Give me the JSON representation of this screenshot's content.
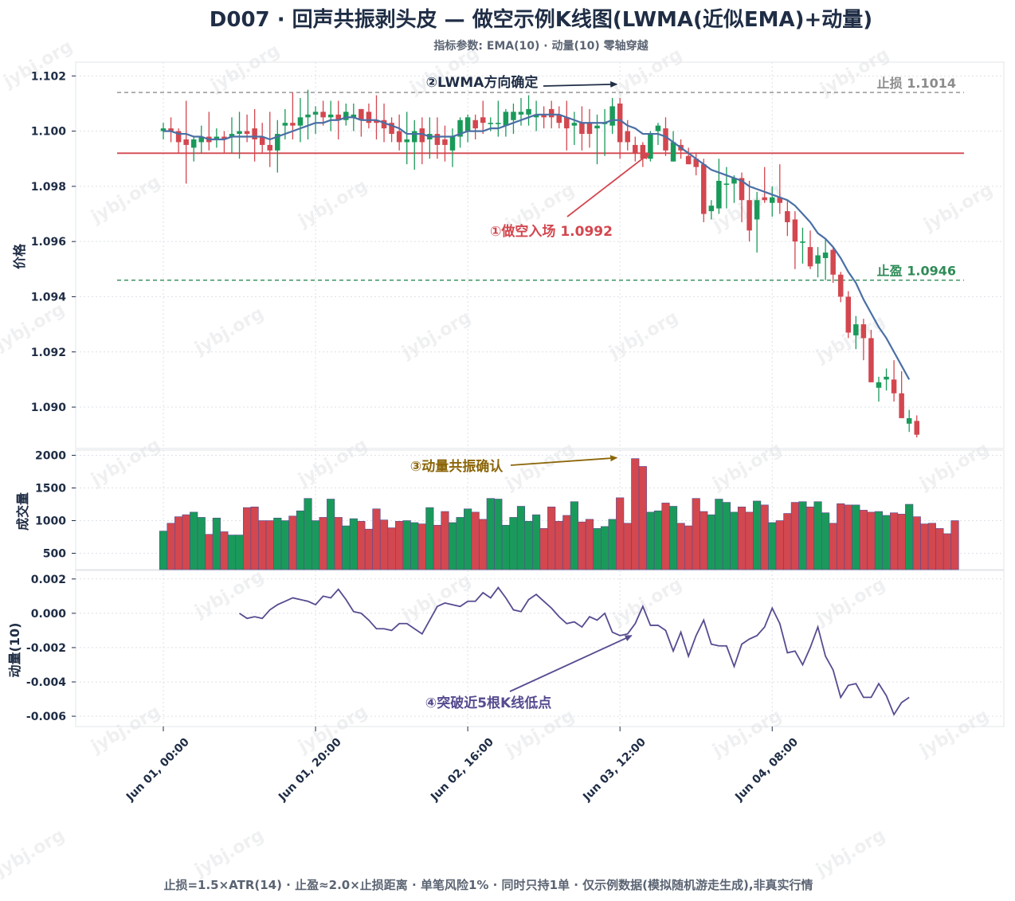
{
  "title": "D007 · 回声共振剥头皮 — 做空示例K线图(LWMA(近似EMA)+动量)",
  "subtitle": "指标参数: EMA(10) · 动量(10) 零轴穿越",
  "footer": "止损=1.5×ATR(14) · 止盈≈2.0×止损距离 · 单笔风险1% · 同时只持1单 · 仅示例数据(模拟随机游走生成),非真实行情",
  "watermark": "jybj.org",
  "colors": {
    "up": "#1a9a5a",
    "down": "#d3474f",
    "lwma": "#4a6fa5",
    "momentum": "#574b90",
    "stop": "#8c8c8c",
    "target": "#2e8b57",
    "entry": "#d3474f",
    "annotation_brown": "#8b6508",
    "annotation_dark": "#1f2d45"
  },
  "chart_data": [
    {
      "type": "candlestick",
      "panel": "price",
      "ylabel": "价格",
      "ylim": [
        1.0885,
        1.1025
      ],
      "yticks": [
        "1.102",
        "1.100",
        "1.098",
        "1.096",
        "1.094",
        "1.092",
        "1.090"
      ],
      "grid": true,
      "x_tick_labels": [
        "Jun 01, 00:00",
        "Jun 01, 20:00",
        "Jun 02, 16:00",
        "Jun 03, 12:00",
        "Jun 04, 08:00"
      ],
      "x_tick_bar_index": [
        0,
        20,
        40,
        60,
        80
      ],
      "bar_interval": "1h",
      "candles": [
        {
          "o": 1.1,
          "h": 1.1003,
          "l": 1.0997,
          "c": 1.1001
        },
        {
          "o": 1.1001,
          "h": 1.1005,
          "l": 1.0996,
          "c": 1.1
        },
        {
          "o": 1.1,
          "h": 1.1001,
          "l": 1.0992,
          "c": 1.0996
        },
        {
          "o": 1.0997,
          "h": 1.1011,
          "l": 1.0981,
          "c": 1.0995
        },
        {
          "o": 1.0994,
          "h": 1.0998,
          "l": 1.0989,
          "c": 1.0997
        },
        {
          "o": 1.0996,
          "h": 1.1002,
          "l": 1.0992,
          "c": 1.0998
        },
        {
          "o": 1.0998,
          "h": 1.1007,
          "l": 1.0993,
          "c": 1.0996
        },
        {
          "o": 1.0997,
          "h": 1.1001,
          "l": 1.0994,
          "c": 1.0998
        },
        {
          "o": 1.0998,
          "h": 1.1,
          "l": 1.0992,
          "c": 1.0997
        },
        {
          "o": 1.0998,
          "h": 1.1005,
          "l": 1.0992,
          "c": 1.0999
        },
        {
          "o": 1.0999,
          "h": 1.1007,
          "l": 1.099,
          "c": 1.1
        },
        {
          "o": 1.1,
          "h": 1.1006,
          "l": 1.0996,
          "c": 1.0999
        },
        {
          "o": 1.1001,
          "h": 1.1008,
          "l": 1.0989,
          "c": 1.0997
        },
        {
          "o": 1.0998,
          "h": 1.1003,
          "l": 1.0992,
          "c": 1.0995
        },
        {
          "o": 1.0995,
          "h": 1.1007,
          "l": 1.0987,
          "c": 1.0993
        },
        {
          "o": 1.0993,
          "h": 1.1004,
          "l": 1.0985,
          "c": 1.0999
        },
        {
          "o": 1.1002,
          "h": 1.1008,
          "l": 1.0997,
          "c": 1.1003
        },
        {
          "o": 1.1003,
          "h": 1.1014,
          "l": 1.0997,
          "c": 1.1002
        },
        {
          "o": 1.1002,
          "h": 1.1012,
          "l": 1.0996,
          "c": 1.1005
        },
        {
          "o": 1.1005,
          "h": 1.1015,
          "l": 1.0997,
          "c": 1.1006
        },
        {
          "o": 1.1006,
          "h": 1.1009,
          "l": 1.0999,
          "c": 1.1007
        },
        {
          "o": 1.1007,
          "h": 1.1011,
          "l": 1.1002,
          "c": 1.1005
        },
        {
          "o": 1.1005,
          "h": 1.1011,
          "l": 1.1,
          "c": 1.1006
        },
        {
          "o": 1.1006,
          "h": 1.1011,
          "l": 1.0997,
          "c": 1.1004
        },
        {
          "o": 1.1004,
          "h": 1.101,
          "l": 1.1002,
          "c": 1.1007
        },
        {
          "o": 1.1005,
          "h": 1.101,
          "l": 1.1,
          "c": 1.1006
        },
        {
          "o": 1.1008,
          "h": 1.1008,
          "l": 1.0998,
          "c": 1.1004
        },
        {
          "o": 1.1007,
          "h": 1.101,
          "l": 1.1001,
          "c": 1.1003
        },
        {
          "o": 1.1004,
          "h": 1.1013,
          "l": 1.0997,
          "c": 1.1003
        },
        {
          "o": 1.1004,
          "h": 1.101,
          "l": 1.0996,
          "c": 1.1001
        },
        {
          "o": 1.1003,
          "h": 1.1005,
          "l": 1.0996,
          "c": 1.0999
        },
        {
          "o": 1.1,
          "h": 1.1006,
          "l": 1.0993,
          "c": 1.0996
        },
        {
          "o": 1.0996,
          "h": 1.1007,
          "l": 1.0988,
          "c": 1.0997
        },
        {
          "o": 1.0996,
          "h": 1.1004,
          "l": 1.0986,
          "c": 1.1
        },
        {
          "o": 1.1001,
          "h": 1.1005,
          "l": 1.0988,
          "c": 1.0996
        },
        {
          "o": 1.0997,
          "h": 1.1005,
          "l": 1.099,
          "c": 1.0999
        },
        {
          "o": 1.0999,
          "h": 1.1005,
          "l": 1.099,
          "c": 1.0995
        },
        {
          "o": 1.0997,
          "h": 1.1002,
          "l": 1.0989,
          "c": 1.0995
        },
        {
          "o": 1.0993,
          "h": 1.1001,
          "l": 1.0987,
          "c": 1.0998
        },
        {
          "o": 1.0998,
          "h": 1.1005,
          "l": 1.0994,
          "c": 1.1004
        },
        {
          "o": 1.1,
          "h": 1.1006,
          "l": 1.0996,
          "c": 1.1005
        },
        {
          "o": 1.1004,
          "h": 1.1006,
          "l": 1.0997,
          "c": 1.1001
        },
        {
          "o": 1.1005,
          "h": 1.1011,
          "l": 1.0999,
          "c": 1.1003
        },
        {
          "o": 1.1003,
          "h": 1.1005,
          "l": 1.1,
          "c": 1.1003
        },
        {
          "o": 1.1003,
          "h": 1.1011,
          "l": 1.0998,
          "c": 1.1003
        },
        {
          "o": 1.1002,
          "h": 1.1008,
          "l": 1.0998,
          "c": 1.1007
        },
        {
          "o": 1.1004,
          "h": 1.101,
          "l": 1.0999,
          "c": 1.1007
        },
        {
          "o": 1.1006,
          "h": 1.1012,
          "l": 1.1002,
          "c": 1.1007
        },
        {
          "o": 1.1006,
          "h": 1.1013,
          "l": 1.1002,
          "c": 1.1008
        },
        {
          "o": 1.1005,
          "h": 1.1011,
          "l": 1.1,
          "c": 1.1006
        },
        {
          "o": 1.1006,
          "h": 1.1009,
          "l": 1.1001,
          "c": 1.1005
        },
        {
          "o": 1.1008,
          "h": 1.1011,
          "l": 1.1001,
          "c": 1.1005
        },
        {
          "o": 1.1006,
          "h": 1.1009,
          "l": 1.1001,
          "c": 1.1003
        },
        {
          "o": 1.1005,
          "h": 1.1011,
          "l": 1.0993,
          "c": 1.1001
        },
        {
          "o": 1.1002,
          "h": 1.1007,
          "l": 1.0995,
          "c": 1.1003
        },
        {
          "o": 1.1003,
          "h": 1.1009,
          "l": 1.0993,
          "c": 1.0999
        },
        {
          "o": 1.1003,
          "h": 1.1008,
          "l": 1.0994,
          "c": 1.0999
        },
        {
          "o": 1.1001,
          "h": 1.1006,
          "l": 1.0988,
          "c": 1.1002
        },
        {
          "o": 1.1003,
          "h": 1.1008,
          "l": 1.0991,
          "c": 1.1003
        },
        {
          "o": 1.1002,
          "h": 1.1012,
          "l": 1.0999,
          "c": 1.1009
        },
        {
          "o": 1.101,
          "h": 1.1012,
          "l": 1.099,
          "c": 1.0996
        },
        {
          "o": 1.1,
          "h": 1.1004,
          "l": 1.0993,
          "c": 1.0996
        },
        {
          "o": 1.0995,
          "h": 1.0998,
          "l": 1.0989,
          "c": 1.0992
        },
        {
          "o": 1.0995,
          "h": 1.0996,
          "l": 1.0987,
          "c": 1.099
        },
        {
          "o": 1.099,
          "h": 1.1,
          "l": 1.0989,
          "c": 1.0999
        },
        {
          "o": 1.1,
          "h": 1.1003,
          "l": 1.0995,
          "c": 1.1002
        },
        {
          "o": 1.1001,
          "h": 1.1005,
          "l": 1.0991,
          "c": 1.0993
        },
        {
          "o": 1.0989,
          "h": 1.1,
          "l": 1.0989,
          "c": 1.0996
        },
        {
          "o": 1.0995,
          "h": 1.0997,
          "l": 1.099,
          "c": 1.0993
        },
        {
          "o": 1.0991,
          "h": 1.0994,
          "l": 1.0988,
          "c": 1.0988
        },
        {
          "o": 1.099,
          "h": 1.0992,
          "l": 1.0984,
          "c": 1.0987
        },
        {
          "o": 1.0988,
          "h": 1.099,
          "l": 1.0967,
          "c": 1.097
        },
        {
          "o": 1.0971,
          "h": 1.0975,
          "l": 1.0968,
          "c": 1.0973
        },
        {
          "o": 1.0972,
          "h": 1.099,
          "l": 1.097,
          "c": 1.0982
        },
        {
          "o": 1.0981,
          "h": 1.0987,
          "l": 1.0972,
          "c": 1.0981
        },
        {
          "o": 1.0981,
          "h": 1.0984,
          "l": 1.0974,
          "c": 1.0983
        },
        {
          "o": 1.0983,
          "h": 1.0985,
          "l": 1.0967,
          "c": 1.0975
        },
        {
          "o": 1.0975,
          "h": 1.0982,
          "l": 1.096,
          "c": 1.0964
        },
        {
          "o": 1.0968,
          "h": 1.0978,
          "l": 1.0956,
          "c": 1.0975
        },
        {
          "o": 1.0976,
          "h": 1.0987,
          "l": 1.0974,
          "c": 1.0975
        },
        {
          "o": 1.0974,
          "h": 1.098,
          "l": 1.0969,
          "c": 1.0976
        },
        {
          "o": 1.0976,
          "h": 1.0988,
          "l": 1.097,
          "c": 1.0974
        },
        {
          "o": 1.0971,
          "h": 1.0975,
          "l": 1.0962,
          "c": 1.0967
        },
        {
          "o": 1.0968,
          "h": 1.0971,
          "l": 1.095,
          "c": 1.096
        },
        {
          "o": 1.096,
          "h": 1.0965,
          "l": 1.0952,
          "c": 1.096
        },
        {
          "o": 1.0958,
          "h": 1.0964,
          "l": 1.095,
          "c": 1.0951
        },
        {
          "o": 1.0952,
          "h": 1.0958,
          "l": 1.0947,
          "c": 1.0955
        },
        {
          "o": 1.0954,
          "h": 1.0961,
          "l": 1.0946,
          "c": 1.0956
        },
        {
          "o": 1.0957,
          "h": 1.0958,
          "l": 1.0945,
          "c": 1.0948
        },
        {
          "o": 1.0948,
          "h": 1.0949,
          "l": 1.0938,
          "c": 1.094
        },
        {
          "o": 1.094,
          "h": 1.0942,
          "l": 1.0925,
          "c": 1.0927
        },
        {
          "o": 1.0926,
          "h": 1.0933,
          "l": 1.0921,
          "c": 1.093
        },
        {
          "o": 1.093,
          "h": 1.0932,
          "l": 1.0917,
          "c": 1.0925
        },
        {
          "o": 1.0925,
          "h": 1.0928,
          "l": 1.0909,
          "c": 1.0909
        },
        {
          "o": 1.0907,
          "h": 1.0911,
          "l": 1.0902,
          "c": 1.0909
        },
        {
          "o": 1.091,
          "h": 1.0914,
          "l": 1.0906,
          "c": 1.0911
        },
        {
          "o": 1.091,
          "h": 1.0917,
          "l": 1.0902,
          "c": 1.0905
        },
        {
          "o": 1.0905,
          "h": 1.0913,
          "l": 1.0896,
          "c": 1.0896
        },
        {
          "o": 1.0894,
          "h": 1.0899,
          "l": 1.0891,
          "c": 1.0896
        },
        {
          "o": 1.0895,
          "h": 1.0897,
          "l": 1.0889,
          "c": 1.089
        }
      ],
      "lwma": [
        1.1,
        1.1,
        1.0999,
        1.0999,
        1.0998,
        1.0998,
        1.0997,
        1.0997,
        1.0997,
        1.0998,
        1.0998,
        1.0998,
        1.0998,
        1.0998,
        1.0997,
        1.0998,
        1.0999,
        1.1,
        1.1001,
        1.1002,
        1.1003,
        1.1003,
        1.1004,
        1.1004,
        1.1005,
        1.1005,
        1.1004,
        1.1004,
        1.1004,
        1.1003,
        1.1002,
        1.1001,
        1.0999,
        1.0999,
        1.0999,
        1.0998,
        1.0998,
        1.0998,
        1.0998,
        1.0999,
        1.1,
        1.1,
        1.1,
        1.1001,
        1.1001,
        1.1002,
        1.1003,
        1.1004,
        1.1005,
        1.1006,
        1.1006,
        1.1006,
        1.1006,
        1.1005,
        1.1004,
        1.1003,
        1.1003,
        1.1003,
        1.1003,
        1.1004,
        1.1004,
        1.1002,
        1.1001,
        1.0999,
        1.0999,
        1.0999,
        1.0998,
        1.0996,
        1.0994,
        1.0992,
        1.099,
        1.0988,
        1.0986,
        1.0985,
        1.0984,
        1.0983,
        1.0982,
        1.098,
        1.0979,
        1.0978,
        1.0977,
        1.0976,
        1.0975,
        1.0973,
        1.097,
        1.0967,
        1.0963,
        1.0961,
        1.0958,
        1.0954,
        1.0949,
        1.0945,
        1.0939,
        1.0934,
        1.0929,
        1.0925,
        1.092,
        1.0915,
        1.091
      ],
      "levels": [
        {
          "label": "止损 1.1014",
          "value": 1.1014,
          "style": "dashed",
          "color": "#8c8c8c"
        },
        {
          "label": "止盈 1.0946",
          "value": 1.0946,
          "style": "dashed",
          "color": "#2e8b57"
        },
        {
          "label": "",
          "value": 1.0992,
          "style": "solid",
          "color": "#d3474f"
        }
      ],
      "annotations": [
        {
          "text": "①做空入场 1.0992",
          "bar": 62,
          "value": 1.0992,
          "color": "#d3474f"
        },
        {
          "text": "②LWMA方向确定",
          "bar": 60,
          "value": 1.1017,
          "color": "#1f2d45"
        }
      ]
    },
    {
      "type": "bar",
      "panel": "volume",
      "ylabel": "成交量",
      "ylim": [
        250,
        2080
      ],
      "yticks": [
        "2000",
        "1500",
        "1000",
        "500"
      ],
      "values": [
        840,
        960,
        1060,
        1090,
        1130,
        1050,
        790,
        1040,
        830,
        780,
        780,
        1200,
        1210,
        1000,
        1000,
        1040,
        1000,
        1070,
        1150,
        1340,
        1000,
        1050,
        1330,
        1050,
        920,
        1030,
        990,
        870,
        1180,
        1010,
        890,
        990,
        1000,
        970,
        950,
        1200,
        930,
        1140,
        970,
        1050,
        1180,
        1130,
        1020,
        1340,
        1330,
        930,
        1050,
        1220,
        990,
        1090,
        880,
        1210,
        990,
        1080,
        1290,
        980,
        1020,
        880,
        910,
        1020,
        1350,
        960,
        1950,
        1830,
        1130,
        1150,
        1270,
        1220,
        960,
        920,
        1340,
        1140,
        1090,
        1330,
        1280,
        1130,
        1210,
        1130,
        1300,
        1240,
        970,
        1000,
        1110,
        1280,
        1290,
        1210,
        1290,
        1120,
        960,
        1260,
        1240,
        1240,
        1160,
        1130,
        1140,
        1080,
        1120,
        1100,
        1250,
        1060,
        950,
        960,
        880,
        800,
        1000
      ],
      "annotation": {
        "text": "③动量共振确认",
        "bar": 60,
        "value": 1950,
        "color": "#8b6508"
      }
    },
    {
      "type": "line",
      "panel": "momentum",
      "ylabel": "动量(10)",
      "ylim": [
        -0.0066,
        0.0025
      ],
      "yticks": [
        "0.002",
        "0.000",
        "-0.002",
        "-0.004",
        "-0.006"
      ],
      "start_bar": 10,
      "values": [
        0.0,
        -0.0003,
        -0.0002,
        -0.0003,
        0.0002,
        0.0005,
        0.0007,
        0.0009,
        0.0008,
        0.0007,
        0.0005,
        0.001,
        0.0009,
        0.0014,
        0.0008,
        0.0001,
        0.0,
        -0.0004,
        -0.0009,
        -0.0009,
        -0.001,
        -0.0006,
        -0.0006,
        -0.0009,
        -0.0012,
        -0.0004,
        0.0004,
        0.0006,
        0.0005,
        0.0004,
        0.0007,
        0.0007,
        0.0012,
        0.0009,
        0.0015,
        0.0009,
        0.0002,
        0.0001,
        0.0008,
        0.0011,
        0.0007,
        0.0003,
        -0.0002,
        -0.0006,
        -0.0005,
        -0.0008,
        -0.0002,
        -0.0004,
        0.0,
        -0.0011,
        -0.0013,
        -0.0012,
        -0.0006,
        0.0004,
        -0.0007,
        -0.0007,
        -0.001,
        -0.0022,
        -0.0011,
        -0.0025,
        -0.0013,
        -0.0004,
        -0.0018,
        -0.0019,
        -0.0019,
        -0.0031,
        -0.0018,
        -0.0015,
        -0.0013,
        -0.0008,
        0.0003,
        -0.0006,
        -0.0023,
        -0.0022,
        -0.003,
        -0.002,
        -0.0008,
        -0.0025,
        -0.0033,
        -0.0049,
        -0.0042,
        -0.0041,
        -0.0049,
        -0.0049,
        -0.0041,
        -0.0048,
        -0.0059,
        -0.0052,
        -0.0049
      ],
      "annotation": {
        "text": "④突破近5根K线低点",
        "bar": 61,
        "value": -0.0013,
        "color": "#574b90"
      }
    }
  ]
}
